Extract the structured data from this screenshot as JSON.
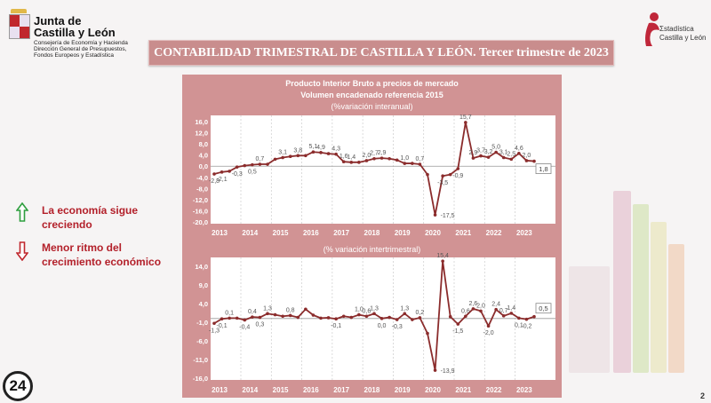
{
  "header": {
    "org_name_line1": "Junta de",
    "org_name_line2": "Castilla y León",
    "org_sub1": "Consejería de Economía y Hacienda",
    "org_sub2": "Dirección General de Presupuestos,",
    "org_sub3": "Fondos Europeos y Estadística",
    "title": "CONTABILIDAD TRIMESTRAL DE CASTILLA Y LEÓN. Tercer trimestre de 2023",
    "stat_logo_line1": "Σstadística",
    "stat_logo_line2": "Castilla y León"
  },
  "notes": [
    {
      "text": "La economía sigue creciendo",
      "icon": "arrow-up-icon",
      "color": "#2e9e3e"
    },
    {
      "text": "Menor ritmo del crecimiento económico",
      "icon": "arrow-down-icon",
      "color": "#c0272d"
    }
  ],
  "footer": {
    "badge": "24",
    "page_number": "2"
  },
  "colors": {
    "panel": "#d19394",
    "line": "#8b2c2c",
    "title_bar": "#c98d8d",
    "note_text": "#b3202a"
  },
  "chart_data": [
    {
      "type": "line",
      "title": "Producto Interior Bruto a precios de mercado",
      "subtitle": "Volumen encadenado referencia 2015",
      "ylabel": "(%variación interanual)",
      "ylim": [
        -20,
        16
      ],
      "yticks": [
        "16,0",
        "12,0",
        "8,0",
        "4,0",
        "0,0",
        "-4,0",
        "-8,0",
        "-12,0",
        "-16,0",
        "-20,0"
      ],
      "ytick_values": [
        16,
        12,
        8,
        4,
        0,
        -4,
        -8,
        -12,
        -16,
        -20
      ],
      "xticks": [
        "2013",
        "2014",
        "2015",
        "2016",
        "2017",
        "2018",
        "2019",
        "2020",
        "2021",
        "2022",
        "2023"
      ],
      "values": [
        -2.8,
        -2.1,
        -1.8,
        -0.3,
        0.2,
        0.5,
        0.7,
        0.7,
        2.5,
        3.1,
        3.5,
        3.8,
        3.8,
        5.1,
        4.9,
        4.5,
        4.3,
        1.6,
        1.4,
        1.4,
        2.0,
        2.7,
        2.9,
        2.7,
        2.2,
        1.0,
        1.0,
        0.7,
        -3.0,
        -17.5,
        -3.5,
        -3.0,
        -0.9,
        15.7,
        2.9,
        3.7,
        3.2,
        5.0,
        3.1,
        2.5,
        4.6,
        2.0,
        1.8
      ],
      "labels": [
        "-2,8",
        "-2,1",
        "",
        "-0,3",
        "",
        "0,5",
        "0,7",
        "",
        "",
        "3,1",
        "",
        "3,8",
        "",
        "5,1",
        "4,9",
        "",
        "4,3",
        "1,6",
        "1,4",
        "",
        "2,0",
        "2,7",
        "2,9",
        "",
        "",
        "1,0",
        "",
        "0,7",
        "",
        "-17,5",
        "-3,5",
        "",
        "-0,9",
        "15,7",
        "2,9",
        "3,7",
        "3,2",
        "5,0",
        "3,1",
        "2,5",
        "4,6",
        "2,0",
        "1,8"
      ],
      "grid": true
    },
    {
      "type": "line",
      "ylabel": "(% variación intertrimestral)",
      "ylim": [
        -16,
        14
      ],
      "yticks": [
        "14,0",
        "9,0",
        "4,0",
        "-1,0",
        "-6,0",
        "-11,0",
        "-16,0"
      ],
      "ytick_values": [
        14,
        9,
        4,
        -1,
        -6,
        -11,
        -16
      ],
      "xticks": [
        "2013",
        "2014",
        "2015",
        "2016",
        "2017",
        "2018",
        "2019",
        "2020",
        "2021",
        "2022",
        "2023"
      ],
      "values": [
        -1.3,
        -0.1,
        0.1,
        0.1,
        -0.4,
        0.4,
        0.3,
        1.3,
        1.0,
        0.6,
        0.8,
        0.3,
        2.5,
        0.9,
        0.1,
        0.2,
        -0.1,
        0.6,
        0.3,
        1.0,
        0.6,
        1.3,
        0.0,
        0.3,
        -0.3,
        1.3,
        -0.3,
        0.2,
        -4.0,
        -13.9,
        15.4,
        0.5,
        -1.5,
        0.6,
        2.6,
        2.0,
        -2.0,
        2.4,
        0.7,
        1.4,
        0.1,
        -0.2,
        0.5
      ],
      "labels": [
        "-1,3",
        "-0,1",
        "0,1",
        "",
        "-0,4",
        "0,4",
        "0,3",
        "1,3",
        "",
        "",
        "0,8",
        "",
        "",
        "",
        "",
        "",
        "-0,1",
        "",
        "",
        "1,0",
        "0,6",
        "1,3",
        "0,0",
        "",
        "-0,3",
        "1,3",
        "",
        "0,2",
        "",
        "-13,9",
        "15,4",
        "",
        "-1,5",
        "0,6",
        "2,6",
        "2,0",
        "-2,0",
        "2,4",
        "0,7",
        "1,4",
        "0,1",
        "-0,2",
        "0,5"
      ],
      "grid": true
    }
  ]
}
